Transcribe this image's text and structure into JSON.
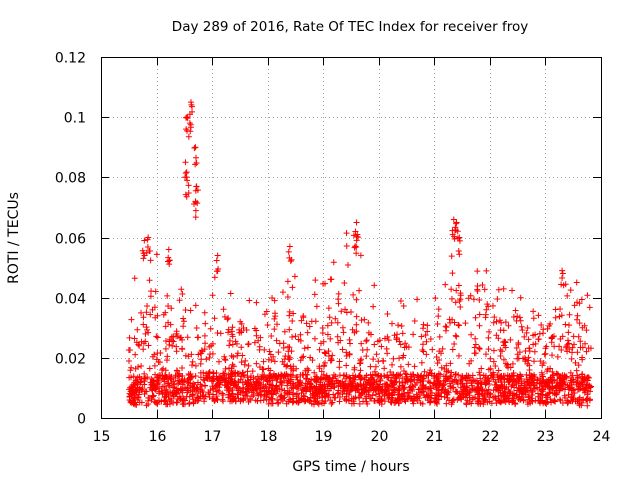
{
  "chart_data": {
    "type": "scatter",
    "title": "Day 289 of 2016, Rate Of TEC Index for receiver froy",
    "xlabel": "GPS time / hours",
    "ylabel": "ROTI / TECUs",
    "xlim": [
      15,
      24
    ],
    "ylim": [
      0,
      0.12
    ],
    "x_ticks": [
      15,
      16,
      17,
      18,
      19,
      20,
      21,
      22,
      23,
      24
    ],
    "x_tick_labels": [
      "15",
      "16",
      "17",
      "18",
      "19",
      "20",
      "21",
      "22",
      "23",
      "24"
    ],
    "y_ticks": [
      0,
      0.02,
      0.04,
      0.06,
      0.08,
      0.1,
      0.12
    ],
    "y_tick_labels": [
      "0",
      "0.02",
      "0.04",
      "0.06",
      "0.08",
      "0.1",
      "0.12"
    ],
    "grid": true,
    "marker": "plus",
    "color": "#ff0000",
    "x_range_of_data": [
      15.5,
      23.82
    ],
    "notable_points": [
      {
        "x": 16.62,
        "y": 0.105
      },
      {
        "x": 16.55,
        "y": 0.1
      },
      {
        "x": 16.6,
        "y": 0.098
      },
      {
        "x": 16.7,
        "y": 0.09
      },
      {
        "x": 16.52,
        "y": 0.085
      },
      {
        "x": 16.55,
        "y": 0.079
      },
      {
        "x": 16.72,
        "y": 0.077
      },
      {
        "x": 16.7,
        "y": 0.072
      },
      {
        "x": 15.85,
        "y": 0.06
      },
      {
        "x": 15.78,
        "y": 0.059
      },
      {
        "x": 16.22,
        "y": 0.056
      },
      {
        "x": 19.6,
        "y": 0.065
      },
      {
        "x": 19.58,
        "y": 0.062
      },
      {
        "x": 21.35,
        "y": 0.066
      },
      {
        "x": 21.4,
        "y": 0.065
      },
      {
        "x": 21.45,
        "y": 0.06
      },
      {
        "x": 18.4,
        "y": 0.057
      },
      {
        "x": 17.1,
        "y": 0.054
      },
      {
        "x": 23.3,
        "y": 0.049
      }
    ],
    "bulk_envelope": [
      {
        "x": 15.5,
        "base": 0.008,
        "peak": 0.043
      },
      {
        "x": 16.0,
        "base": 0.009,
        "peak": 0.06
      },
      {
        "x": 16.5,
        "base": 0.009,
        "peak": 0.042
      },
      {
        "x": 17.0,
        "base": 0.01,
        "peak": 0.048
      },
      {
        "x": 17.5,
        "base": 0.01,
        "peak": 0.042
      },
      {
        "x": 18.0,
        "base": 0.009,
        "peak": 0.047
      },
      {
        "x": 18.5,
        "base": 0.009,
        "peak": 0.05
      },
      {
        "x": 19.0,
        "base": 0.009,
        "peak": 0.045
      },
      {
        "x": 19.5,
        "base": 0.009,
        "peak": 0.065
      },
      {
        "x": 20.0,
        "base": 0.009,
        "peak": 0.04
      },
      {
        "x": 20.5,
        "base": 0.009,
        "peak": 0.044
      },
      {
        "x": 21.0,
        "base": 0.009,
        "peak": 0.042
      },
      {
        "x": 21.5,
        "base": 0.009,
        "peak": 0.066
      },
      {
        "x": 22.0,
        "base": 0.009,
        "peak": 0.047
      },
      {
        "x": 22.5,
        "base": 0.009,
        "peak": 0.044
      },
      {
        "x": 23.0,
        "base": 0.009,
        "peak": 0.04
      },
      {
        "x": 23.5,
        "base": 0.009,
        "peak": 0.049
      },
      {
        "x": 23.82,
        "base": 0.008,
        "peak": 0.04
      }
    ]
  }
}
